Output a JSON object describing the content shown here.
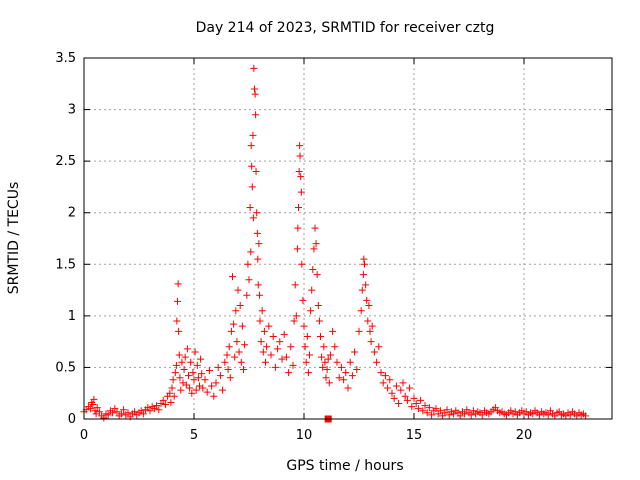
{
  "chart_data": {
    "type": "scatter",
    "title": "Day 214 of 2023, SRMTID for receiver cztg",
    "xlabel": "GPS time / hours",
    "ylabel": "SRMTID / TECUs",
    "xlim": [
      0,
      24
    ],
    "ylim": [
      0,
      3.5
    ],
    "xticks": [
      0,
      5,
      10,
      15,
      20
    ],
    "xtick_labels": [
      "0",
      "5",
      "10",
      "15",
      "20"
    ],
    "yticks": [
      0,
      0.5,
      1,
      1.5,
      2,
      2.5,
      3,
      3.5
    ],
    "ytick_labels": [
      "0",
      "0.5",
      "1",
      "1.5",
      "2",
      "2.5",
      "3",
      "3.5"
    ],
    "grid": true,
    "marker": "+",
    "color": "#ff0000",
    "series": [
      {
        "name": "cztg",
        "points": [
          [
            0.0,
            0.07
          ],
          [
            0.1,
            0.09
          ],
          [
            0.2,
            0.12
          ],
          [
            0.3,
            0.1
          ],
          [
            0.35,
            0.16
          ],
          [
            0.4,
            0.14
          ],
          [
            0.45,
            0.19
          ],
          [
            0.5,
            0.08
          ],
          [
            0.55,
            0.05
          ],
          [
            0.6,
            0.11
          ],
          [
            0.7,
            0.07
          ],
          [
            0.8,
            0.03
          ],
          [
            0.9,
            0.01
          ],
          [
            1.0,
            0.05
          ],
          [
            1.1,
            0.04
          ],
          [
            1.2,
            0.08
          ],
          [
            1.3,
            0.06
          ],
          [
            1.4,
            0.1
          ],
          [
            1.5,
            0.07
          ],
          [
            1.6,
            0.03
          ],
          [
            1.7,
            0.05
          ],
          [
            1.8,
            0.09
          ],
          [
            1.9,
            0.04
          ],
          [
            2.0,
            0.06
          ],
          [
            2.1,
            0.02
          ],
          [
            2.2,
            0.05
          ],
          [
            2.3,
            0.07
          ],
          [
            2.4,
            0.04
          ],
          [
            2.5,
            0.06
          ],
          [
            2.6,
            0.08
          ],
          [
            2.7,
            0.05
          ],
          [
            2.8,
            0.09
          ],
          [
            2.9,
            0.11
          ],
          [
            3.0,
            0.08
          ],
          [
            3.1,
            0.12
          ],
          [
            3.2,
            0.1
          ],
          [
            3.3,
            0.13
          ],
          [
            3.4,
            0.09
          ],
          [
            3.5,
            0.15
          ],
          [
            3.6,
            0.18
          ],
          [
            3.7,
            0.14
          ],
          [
            3.8,
            0.22
          ],
          [
            3.9,
            0.25
          ],
          [
            3.95,
            0.16
          ],
          [
            4.0,
            0.3
          ],
          [
            4.05,
            0.38
          ],
          [
            4.1,
            0.22
          ],
          [
            4.15,
            0.45
          ],
          [
            4.2,
            0.52
          ],
          [
            4.22,
            0.95
          ],
          [
            4.25,
            1.14
          ],
          [
            4.28,
            1.31
          ],
          [
            4.3,
            0.85
          ],
          [
            4.33,
            0.62
          ],
          [
            4.36,
            0.4
          ],
          [
            4.4,
            0.28
          ],
          [
            4.45,
            0.55
          ],
          [
            4.5,
            0.35
          ],
          [
            4.55,
            0.48
          ],
          [
            4.6,
            0.6
          ],
          [
            4.65,
            0.33
          ],
          [
            4.7,
            0.68
          ],
          [
            4.75,
            0.42
          ],
          [
            4.8,
            0.3
          ],
          [
            4.85,
            0.55
          ],
          [
            4.9,
            0.25
          ],
          [
            4.95,
            0.45
          ],
          [
            5.0,
            0.38
          ],
          [
            5.05,
            0.65
          ],
          [
            5.1,
            0.28
          ],
          [
            5.15,
            0.52
          ],
          [
            5.2,
            0.4
          ],
          [
            5.25,
            0.32
          ],
          [
            5.3,
            0.58
          ],
          [
            5.35,
            0.44
          ],
          [
            5.4,
            0.3
          ],
          [
            5.5,
            0.38
          ],
          [
            5.6,
            0.26
          ],
          [
            5.7,
            0.47
          ],
          [
            5.8,
            0.32
          ],
          [
            5.9,
            0.22
          ],
          [
            6.0,
            0.35
          ],
          [
            6.1,
            0.5
          ],
          [
            6.2,
            0.42
          ],
          [
            6.3,
            0.28
          ],
          [
            6.4,
            0.55
          ],
          [
            6.5,
            0.62
          ],
          [
            6.55,
            0.48
          ],
          [
            6.6,
            0.7
          ],
          [
            6.65,
            0.4
          ],
          [
            6.7,
            0.85
          ],
          [
            6.75,
            1.38
          ],
          [
            6.8,
            0.92
          ],
          [
            6.85,
            0.6
          ],
          [
            6.9,
            1.05
          ],
          [
            6.95,
            0.75
          ],
          [
            7.0,
            1.25
          ],
          [
            7.05,
            0.65
          ],
          [
            7.1,
            1.1
          ],
          [
            7.15,
            0.55
          ],
          [
            7.2,
            0.9
          ],
          [
            7.25,
            0.48
          ],
          [
            7.3,
            0.72
          ],
          [
            7.4,
            1.2
          ],
          [
            7.45,
            1.5
          ],
          [
            7.5,
            1.35
          ],
          [
            7.55,
            2.05
          ],
          [
            7.58,
            1.62
          ],
          [
            7.6,
            2.65
          ],
          [
            7.62,
            2.45
          ],
          [
            7.65,
            2.25
          ],
          [
            7.68,
            2.75
          ],
          [
            7.7,
            1.95
          ],
          [
            7.72,
            3.4
          ],
          [
            7.75,
            3.2
          ],
          [
            7.78,
            3.15
          ],
          [
            7.8,
            2.95
          ],
          [
            7.82,
            2.4
          ],
          [
            7.85,
            2.0
          ],
          [
            7.88,
            1.8
          ],
          [
            7.9,
            1.55
          ],
          [
            7.92,
            1.3
          ],
          [
            7.95,
            1.7
          ],
          [
            7.98,
            1.2
          ],
          [
            8.0,
            0.95
          ],
          [
            8.05,
            0.75
          ],
          [
            8.1,
            1.05
          ],
          [
            8.15,
            0.65
          ],
          [
            8.2,
            0.85
          ],
          [
            8.25,
            0.55
          ],
          [
            8.3,
            0.7
          ],
          [
            8.4,
            0.9
          ],
          [
            8.5,
            0.62
          ],
          [
            8.6,
            0.8
          ],
          [
            8.7,
            0.5
          ],
          [
            8.8,
            0.68
          ],
          [
            8.9,
            0.75
          ],
          [
            9.0,
            0.58
          ],
          [
            9.1,
            0.82
          ],
          [
            9.2,
            0.6
          ],
          [
            9.3,
            0.45
          ],
          [
            9.4,
            0.7
          ],
          [
            9.5,
            0.52
          ],
          [
            9.55,
            0.95
          ],
          [
            9.6,
            1.3
          ],
          [
            9.65,
            1.0
          ],
          [
            9.7,
            1.65
          ],
          [
            9.72,
            1.85
          ],
          [
            9.75,
            2.05
          ],
          [
            9.78,
            2.4
          ],
          [
            9.8,
            2.65
          ],
          [
            9.82,
            2.55
          ],
          [
            9.85,
            2.35
          ],
          [
            9.88,
            2.2
          ],
          [
            9.9,
            1.5
          ],
          [
            9.95,
            1.15
          ],
          [
            10.0,
            0.9
          ],
          [
            10.05,
            0.7
          ],
          [
            10.1,
            0.55
          ],
          [
            10.15,
            0.8
          ],
          [
            10.2,
            0.45
          ],
          [
            10.25,
            0.62
          ],
          [
            10.3,
            1.05
          ],
          [
            10.35,
            1.25
          ],
          [
            10.4,
            1.45
          ],
          [
            10.45,
            1.65
          ],
          [
            10.5,
            1.85
          ],
          [
            10.55,
            1.7
          ],
          [
            10.6,
            1.4
          ],
          [
            10.65,
            1.1
          ],
          [
            10.7,
            0.95
          ],
          [
            10.75,
            0.8
          ],
          [
            10.8,
            0.6
          ],
          [
            10.85,
            0.5
          ],
          [
            10.9,
            0.7
          ],
          [
            10.95,
            0.55
          ],
          [
            11.0,
            0.4
          ],
          [
            11.05,
            0.48
          ],
          [
            11.1,
            0.58
          ],
          [
            11.15,
            0.35
          ],
          [
            11.2,
            0.62
          ],
          [
            11.3,
            0.85
          ],
          [
            11.4,
            0.7
          ],
          [
            11.5,
            0.55
          ],
          [
            11.6,
            0.4
          ],
          [
            11.7,
            0.5
          ],
          [
            11.8,
            0.38
          ],
          [
            11.9,
            0.45
          ],
          [
            12.0,
            0.3
          ],
          [
            12.1,
            0.55
          ],
          [
            12.2,
            0.42
          ],
          [
            12.3,
            0.65
          ],
          [
            12.4,
            0.48
          ],
          [
            12.5,
            0.85
          ],
          [
            12.6,
            1.05
          ],
          [
            12.65,
            1.25
          ],
          [
            12.7,
            1.4
          ],
          [
            12.72,
            1.55
          ],
          [
            12.75,
            1.5
          ],
          [
            12.8,
            1.3
          ],
          [
            12.85,
            1.15
          ],
          [
            12.9,
            0.95
          ],
          [
            12.95,
            1.1
          ],
          [
            13.0,
            0.85
          ],
          [
            13.05,
            0.75
          ],
          [
            13.1,
            0.9
          ],
          [
            13.2,
            0.65
          ],
          [
            13.3,
            0.55
          ],
          [
            13.4,
            0.7
          ],
          [
            13.5,
            0.45
          ],
          [
            13.6,
            0.35
          ],
          [
            13.7,
            0.42
          ],
          [
            13.8,
            0.3
          ],
          [
            13.9,
            0.38
          ],
          [
            14.0,
            0.25
          ],
          [
            14.1,
            0.2
          ],
          [
            14.2,
            0.32
          ],
          [
            14.3,
            0.15
          ],
          [
            14.4,
            0.28
          ],
          [
            14.5,
            0.35
          ],
          [
            14.6,
            0.22
          ],
          [
            14.7,
            0.18
          ],
          [
            14.8,
            0.3
          ],
          [
            14.9,
            0.12
          ],
          [
            15.0,
            0.2
          ],
          [
            15.1,
            0.15
          ],
          [
            15.2,
            0.1
          ],
          [
            15.3,
            0.18
          ],
          [
            15.4,
            0.08
          ],
          [
            15.5,
            0.13
          ],
          [
            15.6,
            0.06
          ],
          [
            15.7,
            0.11
          ],
          [
            15.8,
            0.04
          ],
          [
            15.9,
            0.08
          ],
          [
            16.0,
            0.1
          ],
          [
            16.1,
            0.05
          ],
          [
            16.2,
            0.08
          ],
          [
            16.3,
            0.03
          ],
          [
            16.4,
            0.06
          ],
          [
            16.5,
            0.09
          ],
          [
            16.6,
            0.04
          ],
          [
            16.7,
            0.07
          ],
          [
            16.8,
            0.05
          ],
          [
            16.9,
            0.08
          ],
          [
            17.0,
            0.06
          ],
          [
            17.1,
            0.03
          ],
          [
            17.2,
            0.07
          ],
          [
            17.3,
            0.05
          ],
          [
            17.4,
            0.09
          ],
          [
            17.5,
            0.06
          ],
          [
            17.6,
            0.04
          ],
          [
            17.7,
            0.08
          ],
          [
            17.8,
            0.05
          ],
          [
            17.9,
            0.07
          ],
          [
            18.0,
            0.06
          ],
          [
            18.1,
            0.04
          ],
          [
            18.2,
            0.08
          ],
          [
            18.3,
            0.06
          ],
          [
            18.4,
            0.05
          ],
          [
            18.5,
            0.07
          ],
          [
            18.6,
            0.09
          ],
          [
            18.7,
            0.11
          ],
          [
            18.8,
            0.08
          ],
          [
            18.9,
            0.06
          ],
          [
            19.0,
            0.07
          ],
          [
            19.1,
            0.05
          ],
          [
            19.2,
            0.04
          ],
          [
            19.3,
            0.06
          ],
          [
            19.4,
            0.08
          ],
          [
            19.5,
            0.05
          ],
          [
            19.6,
            0.07
          ],
          [
            19.7,
            0.04
          ],
          [
            19.8,
            0.06
          ],
          [
            19.9,
            0.08
          ],
          [
            20.0,
            0.05
          ],
          [
            20.1,
            0.07
          ],
          [
            20.2,
            0.04
          ],
          [
            20.3,
            0.06
          ],
          [
            20.4,
            0.05
          ],
          [
            20.5,
            0.08
          ],
          [
            20.6,
            0.06
          ],
          [
            20.7,
            0.04
          ],
          [
            20.8,
            0.07
          ],
          [
            20.9,
            0.05
          ],
          [
            21.0,
            0.06
          ],
          [
            21.1,
            0.04
          ],
          [
            21.2,
            0.08
          ],
          [
            21.3,
            0.05
          ],
          [
            21.4,
            0.03
          ],
          [
            21.5,
            0.06
          ],
          [
            21.6,
            0.07
          ],
          [
            21.7,
            0.04
          ],
          [
            21.8,
            0.05
          ],
          [
            21.9,
            0.03
          ],
          [
            22.0,
            0.06
          ],
          [
            22.1,
            0.04
          ],
          [
            22.2,
            0.07
          ],
          [
            22.3,
            0.05
          ],
          [
            22.4,
            0.03
          ],
          [
            22.5,
            0.06
          ],
          [
            22.6,
            0.04
          ],
          [
            22.7,
            0.05
          ],
          [
            22.8,
            0.03
          ]
        ]
      }
    ],
    "highlight_marker": {
      "x": 11.1,
      "y": 0.0
    }
  }
}
